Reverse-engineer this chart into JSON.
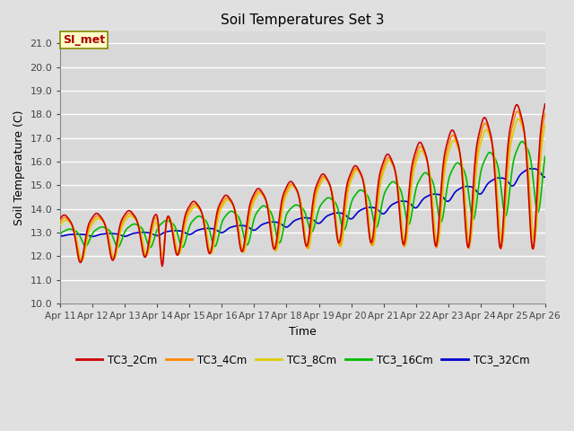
{
  "title": "Soil Temperatures Set 3",
  "xlabel": "Time",
  "ylabel": "Soil Temperature (C)",
  "ylim": [
    10.0,
    21.5
  ],
  "yticks": [
    10.0,
    11.0,
    12.0,
    13.0,
    14.0,
    15.0,
    16.0,
    17.0,
    18.0,
    19.0,
    20.0,
    21.0
  ],
  "background_color": "#e0e0e0",
  "plot_bg_color": "#d8d8d8",
  "grid_color": "#ffffff",
  "line_colors": {
    "TC3_2Cm": "#cc0000",
    "TC3_4Cm": "#ff8800",
    "TC3_8Cm": "#ddcc00",
    "TC3_16Cm": "#00bb00",
    "TC3_32Cm": "#0000cc"
  },
  "legend_label": "SI_met",
  "legend_bg": "#ffffcc",
  "legend_border": "#888800",
  "legend_text_color": "#aa0000",
  "xtick_labels": [
    "Apr 11",
    "Apr 12",
    "Apr 13",
    "Apr 14",
    "Apr 15",
    "Apr 16",
    "Apr 17",
    "Apr 18",
    "Apr 19",
    "Apr 20",
    "Apr 21",
    "Apr 22",
    "Apr 23",
    "Apr 24",
    "Apr 25",
    "Apr 26"
  ],
  "n_days": 15,
  "points_per_day": 48
}
